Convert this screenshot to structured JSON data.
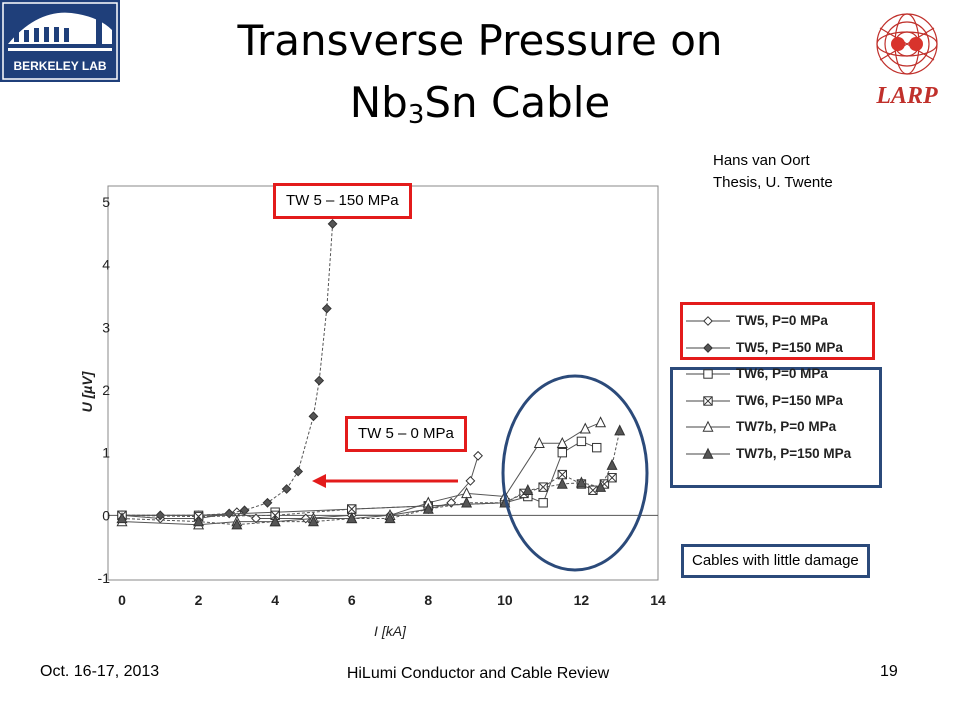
{
  "slide": {
    "title_main": "Transverse Pressure on",
    "title_line2_prefix": "Nb",
    "title_line2_sub": "3",
    "title_line2_suffix": "Sn Cable",
    "logo_left_text": "BERKELEY LAB",
    "logo_right_text": "LARP",
    "credit_line1": "Hans van Oort",
    "credit_line2": "Thesis, U. Twente",
    "callout_150": "TW 5 – 150 MPa",
    "callout_0": "TW 5 – 0 MPa",
    "callout_damage": "Cables with little damage",
    "footer_date": "Oct. 16-17, 2013",
    "footer_center": "HiLumi Conductor and Cable Review",
    "footer_page": "19",
    "accent_red": "#e31b1b",
    "accent_blue": "#2b4a7a"
  },
  "chart_data": {
    "type": "line",
    "xlabel": "I [kA]",
    "ylabel": "U [µV]",
    "xlim": [
      0,
      14
    ],
    "ylim": [
      -1,
      5
    ],
    "xticks": [
      "0",
      "2",
      "4",
      "6",
      "8",
      "10",
      "12",
      "14"
    ],
    "yticks": [
      "-1",
      "0",
      "1",
      "2",
      "3",
      "4",
      "5"
    ],
    "legend_position": "right",
    "series": [
      {
        "name": "TW5, P=0 MPa",
        "marker": "diamond-open",
        "points": [
          [
            0,
            0
          ],
          [
            1,
            -0.05
          ],
          [
            2,
            -0.05
          ],
          [
            3,
            0.05
          ],
          [
            3.5,
            -0.05
          ],
          [
            4.8,
            -0.05
          ],
          [
            6,
            0
          ],
          [
            7,
            0
          ],
          [
            8,
            0.1
          ],
          [
            8.6,
            0.2
          ],
          [
            9.1,
            0.55
          ],
          [
            9.3,
            0.95
          ]
        ]
      },
      {
        "name": "TW5, P=150 MPa",
        "marker": "diamond-filled",
        "points": [
          [
            0,
            0
          ],
          [
            1,
            0
          ],
          [
            2,
            0
          ],
          [
            2.8,
            0.03
          ],
          [
            3.2,
            0.08
          ],
          [
            3.8,
            0.2
          ],
          [
            4.3,
            0.42
          ],
          [
            4.6,
            0.7
          ],
          [
            5,
            1.58
          ],
          [
            5.15,
            2.15
          ],
          [
            5.35,
            3.3
          ],
          [
            5.5,
            4.65
          ]
        ]
      },
      {
        "name": "TW6, P=0 MPa",
        "marker": "square-open",
        "points": [
          [
            0,
            0
          ],
          [
            2,
            0
          ],
          [
            4,
            0.05
          ],
          [
            6,
            0.1
          ],
          [
            8,
            0.15
          ],
          [
            10,
            0.2
          ],
          [
            10.6,
            0.3
          ],
          [
            11,
            0.2
          ],
          [
            11.5,
            1.0
          ],
          [
            12,
            1.18
          ],
          [
            12.4,
            1.08
          ]
        ]
      },
      {
        "name": "TW6, P=150 MPa",
        "marker": "square-x",
        "points": [
          [
            0,
            0
          ],
          [
            2,
            -0.02
          ],
          [
            4,
            0
          ],
          [
            6,
            0.1
          ],
          [
            8,
            0.15
          ],
          [
            10,
            0.2
          ],
          [
            10.5,
            0.35
          ],
          [
            11,
            0.45
          ],
          [
            11.5,
            0.65
          ],
          [
            12,
            0.5
          ],
          [
            12.3,
            0.4
          ],
          [
            12.6,
            0.5
          ],
          [
            12.8,
            0.6
          ]
        ]
      },
      {
        "name": "TW7b, P=0 MPa",
        "marker": "triangle-open",
        "points": [
          [
            0,
            -0.1
          ],
          [
            2,
            -0.15
          ],
          [
            3,
            -0.1
          ],
          [
            4,
            -0.1
          ],
          [
            5,
            -0.05
          ],
          [
            6,
            -0.05
          ],
          [
            7,
            0
          ],
          [
            8,
            0.2
          ],
          [
            9,
            0.35
          ],
          [
            10,
            0.3
          ],
          [
            10.9,
            1.15
          ],
          [
            11.5,
            1.15
          ],
          [
            12.1,
            1.38
          ],
          [
            12.5,
            1.48
          ]
        ]
      },
      {
        "name": "TW7b, P=150 MPa",
        "marker": "triangle-filled",
        "points": [
          [
            0,
            -0.05
          ],
          [
            2,
            -0.1
          ],
          [
            3,
            -0.15
          ],
          [
            4,
            -0.1
          ],
          [
            5,
            -0.1
          ],
          [
            6,
            -0.05
          ],
          [
            7,
            -0.05
          ],
          [
            8,
            0.1
          ],
          [
            9,
            0.2
          ],
          [
            10,
            0.2
          ],
          [
            10.6,
            0.4
          ],
          [
            11.5,
            0.5
          ],
          [
            12,
            0.52
          ],
          [
            12.5,
            0.45
          ],
          [
            12.8,
            0.8
          ],
          [
            13,
            1.35
          ]
        ]
      }
    ]
  }
}
